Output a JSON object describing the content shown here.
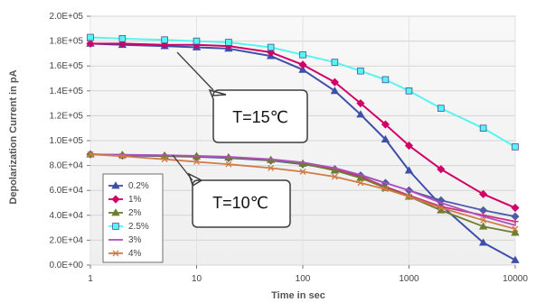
{
  "chart_data": {
    "type": "line",
    "title": "",
    "xlabel": "Time in sec",
    "ylabel": "Depolarization Current in pA",
    "x_scale": "log",
    "xlim": [
      1,
      10000
    ],
    "ylim": [
      0,
      200000
    ],
    "x_ticks": [
      1,
      10,
      100,
      1000,
      10000
    ],
    "x_tick_labels": [
      "1",
      "10",
      "100",
      "1000",
      "10000"
    ],
    "y_ticks": [
      0,
      20000,
      40000,
      60000,
      80000,
      100000,
      120000,
      140000,
      160000,
      180000,
      200000
    ],
    "y_tick_labels": [
      "0.0E+00",
      "2.0E+04",
      "4.0E+04",
      "6.0E+04",
      "8.0E+04",
      "1.0E+05",
      "1.2E+05",
      "1.4E+05",
      "1.6E+05",
      "1.8E+05",
      "2.0E+05"
    ],
    "grid": true,
    "legend_position": "bottom-left",
    "annotations": [
      {
        "text": "T=15℃"
      },
      {
        "text": "T=10℃"
      }
    ],
    "series": [
      {
        "name": "0.2%",
        "group": "T=15℃",
        "color": "#3f4fa8",
        "marker": "triangle",
        "x": [
          1,
          2,
          5,
          10,
          20,
          50,
          100,
          200,
          350,
          600,
          1000,
          2000,
          5000,
          10000
        ],
        "y": [
          178000,
          177000,
          176000,
          175000,
          174000,
          168000,
          157000,
          140000,
          121000,
          101000,
          76000,
          48000,
          18000,
          4000
        ]
      },
      {
        "name": "1%",
        "group": "T=15℃",
        "color": "#d10066",
        "marker": "diamond",
        "x": [
          1,
          2,
          5,
          10,
          20,
          50,
          100,
          200,
          350,
          600,
          1000,
          2000,
          5000,
          10000
        ],
        "y": [
          178000,
          178000,
          177000,
          177000,
          176000,
          171000,
          161000,
          147000,
          130000,
          113000,
          96000,
          77000,
          57000,
          46000
        ]
      },
      {
        "name": "2.5%",
        "group": "T=15℃",
        "color": "#57f5f0",
        "marker": "square",
        "x": [
          1,
          2,
          5,
          10,
          20,
          50,
          100,
          200,
          350,
          600,
          1000,
          2000,
          5000,
          10000
        ],
        "y": [
          183000,
          182000,
          181000,
          180000,
          179000,
          175000,
          169000,
          163000,
          156000,
          149000,
          140000,
          126000,
          110000,
          95000
        ]
      },
      {
        "name": "0.2%",
        "group": "T=10℃",
        "color": "#4e5aa8",
        "marker": "diamond",
        "x": [
          1,
          2,
          5,
          10,
          20,
          50,
          100,
          200,
          350,
          600,
          1000,
          2000,
          5000,
          10000
        ],
        "y": [
          89000,
          88000,
          87500,
          87000,
          86000,
          84000,
          81000,
          77000,
          72000,
          66000,
          60000,
          52000,
          44000,
          39000
        ]
      },
      {
        "name": "1%",
        "group": "T=10℃",
        "color": "#cc2f7d",
        "marker": "cross",
        "x": [
          1,
          2,
          5,
          10,
          20,
          50,
          100,
          200,
          350,
          600,
          1000,
          2000,
          5000,
          10000
        ],
        "y": [
          89000,
          88500,
          88000,
          87500,
          86500,
          84500,
          82000,
          77000,
          71000,
          63000,
          56000,
          47000,
          40000,
          35000
        ]
      },
      {
        "name": "2%",
        "group": "T=10℃",
        "color": "#6d7f2f",
        "marker": "triangle",
        "x": [
          1,
          2,
          5,
          10,
          20,
          50,
          100,
          200,
          350,
          600,
          1000,
          2000,
          5000,
          10000
        ],
        "y": [
          89000,
          88500,
          88000,
          87500,
          86500,
          84500,
          81500,
          76000,
          70000,
          62000,
          55000,
          44000,
          31000,
          26000
        ]
      },
      {
        "name": "3%",
        "group": "T=10℃",
        "color": "#b04fbf",
        "marker": "none",
        "x": [
          1,
          2,
          5,
          10,
          20,
          50,
          100,
          200,
          350,
          600,
          1000,
          2000,
          5000,
          10000
        ],
        "y": [
          89000,
          88700,
          88300,
          87800,
          87000,
          85000,
          82500,
          78000,
          72500,
          66000,
          60000,
          50000,
          39000,
          32000
        ]
      },
      {
        "name": "4%",
        "group": "T=10℃",
        "color": "#d17b45",
        "marker": "x",
        "x": [
          1,
          2,
          5,
          10,
          20,
          50,
          100,
          200,
          350,
          600,
          1000,
          2000,
          5000,
          10000
        ],
        "y": [
          89000,
          87500,
          85000,
          83000,
          81000,
          78000,
          75000,
          71000,
          66000,
          61000,
          55000,
          46000,
          36000,
          29000
        ]
      }
    ],
    "legend": [
      {
        "name": "0.2%",
        "color": "#3f4fa8",
        "marker": "triangle"
      },
      {
        "name": "1%",
        "color": "#d10066",
        "marker": "diamond"
      },
      {
        "name": "2%",
        "color": "#6d7f2f",
        "marker": "triangle"
      },
      {
        "name": "2.5%",
        "color": "#57f5f0",
        "marker": "square"
      },
      {
        "name": "3%",
        "color": "#b04fbf",
        "marker": "none"
      },
      {
        "name": "4%",
        "color": "#d17b45",
        "marker": "x"
      }
    ]
  }
}
